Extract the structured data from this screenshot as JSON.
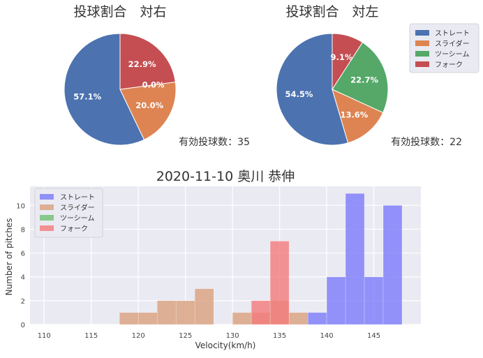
{
  "chart_data": [
    {
      "type": "pie",
      "title": "投球割合　対右",
      "labels": [
        "ストレート",
        "スライダー",
        "ツーシーム",
        "フォーク"
      ],
      "values": [
        57.1,
        20.0,
        0.0,
        22.9
      ],
      "value_labels": [
        "57.1%",
        "20.0%",
        "0.0%",
        "22.9%"
      ],
      "annotation": "有効投球数：35",
      "colors": [
        "#4c72b0",
        "#dd8452",
        "#55a868",
        "#c44e52"
      ]
    },
    {
      "type": "pie",
      "title": "投球割合　対左",
      "labels": [
        "ストレート",
        "スライダー",
        "ツーシーム",
        "フォーク"
      ],
      "values": [
        54.5,
        13.6,
        22.7,
        9.1
      ],
      "value_labels": [
        "54.5%",
        "13.6%",
        "22.7%",
        "9.1%"
      ],
      "annotation": "有効投球数：22",
      "colors": [
        "#4c72b0",
        "#dd8452",
        "#55a868",
        "#c44e52"
      ],
      "legend": {
        "placement": "top-right",
        "entries": [
          "ストレート",
          "スライダー",
          "ツーシーム",
          "フォーク"
        ]
      }
    },
    {
      "type": "bar",
      "subtype": "histogram",
      "title": "2020-11-10 奥川 恭伸",
      "xlabel": "Velocity(km/h)",
      "ylabel": "Number of pitches",
      "xlim": [
        108.5,
        150
      ],
      "ylim": [
        0,
        11.6
      ],
      "xticks": [
        110,
        115,
        120,
        125,
        130,
        135,
        140,
        145
      ],
      "yticks": [
        0,
        2,
        4,
        6,
        8,
        10
      ],
      "grid": true,
      "legend": {
        "placement": "top-left",
        "entries": [
          "ストレート",
          "スライダー",
          "ツーシーム",
          "フォーク"
        ]
      },
      "series": [
        {
          "name": "ストレート",
          "color": "#7b7bfa",
          "bins": [
            {
              "start": 138,
              "end": 140,
              "count": 1
            },
            {
              "start": 140,
              "end": 142,
              "count": 4
            },
            {
              "start": 142,
              "end": 144,
              "count": 11
            },
            {
              "start": 144,
              "end": 146,
              "count": 4
            },
            {
              "start": 146,
              "end": 148,
              "count": 10
            }
          ]
        },
        {
          "name": "スライダー",
          "color": "#d9a07c",
          "bins": [
            {
              "start": 118,
              "end": 120,
              "count": 1
            },
            {
              "start": 120,
              "end": 122,
              "count": 1
            },
            {
              "start": 122,
              "end": 124,
              "count": 2
            },
            {
              "start": 124,
              "end": 126,
              "count": 2
            },
            {
              "start": 126,
              "end": 128,
              "count": 3
            },
            {
              "start": 130,
              "end": 132,
              "count": 1
            },
            {
              "start": 132,
              "end": 134,
              "count": 1
            },
            {
              "start": 134,
              "end": 136,
              "count": 2
            },
            {
              "start": 136,
              "end": 138,
              "count": 1
            }
          ]
        },
        {
          "name": "ツーシーム",
          "color": "#6fbf6f",
          "bins": []
        },
        {
          "name": "フォーク",
          "color": "#f47a7a",
          "bins": [
            {
              "start": 132,
              "end": 134,
              "count": 2
            },
            {
              "start": 134,
              "end": 136,
              "count": 7
            }
          ]
        }
      ]
    }
  ]
}
